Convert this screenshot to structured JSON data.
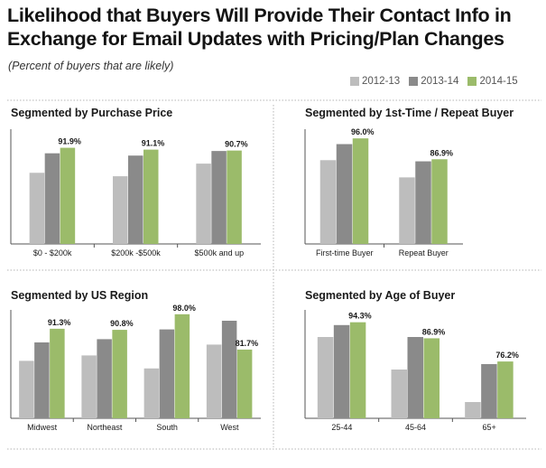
{
  "title": "Likelihood that Buyers Will Provide Their Contact Info in Exchange for Email Updates with Pricing/Plan Changes",
  "subtitle": "(Percent of buyers that are likely)",
  "legend": [
    {
      "label": "2012-13",
      "color": "#bdbdbd"
    },
    {
      "label": "2013-14",
      "color": "#8a8a8a"
    },
    {
      "label": "2014-15",
      "color": "#9bbb6a"
    }
  ],
  "chart_data": [
    {
      "type": "bar",
      "title": "Segmented by Purchase Price",
      "categories": [
        "$0 - $200k",
        "$200k -$500k",
        "$500k and up"
      ],
      "series": [
        {
          "name": "2012-13",
          "values": [
            81.0,
            79.5,
            85.0
          ]
        },
        {
          "name": "2013-14",
          "values": [
            89.5,
            88.5,
            90.5
          ]
        },
        {
          "name": "2014-15",
          "values": [
            91.9,
            91.1,
            90.7
          ]
        }
      ],
      "value_labels": [
        "91.9%",
        "91.1%",
        "90.7%"
      ],
      "ylim": [
        0,
        100
      ]
    },
    {
      "type": "bar",
      "title": "Segmented by 1st-Time / Repeat Buyer",
      "categories": [
        "First-time Buyer",
        "Repeat Buyer"
      ],
      "series": [
        {
          "name": "2012-13",
          "values": [
            86.5,
            79.0
          ]
        },
        {
          "name": "2013-14",
          "values": [
            93.5,
            86.0
          ]
        },
        {
          "name": "2014-15",
          "values": [
            96.0,
            86.9
          ]
        }
      ],
      "value_labels": [
        "96.0%",
        "86.9%"
      ],
      "ylim": [
        0,
        100
      ]
    },
    {
      "type": "bar",
      "title": "Segmented by US Region",
      "categories": [
        "Midwest",
        "Northeast",
        "South",
        "West"
      ],
      "series": [
        {
          "name": "2012-13",
          "values": [
            76.5,
            79.0,
            73.0,
            84.0
          ]
        },
        {
          "name": "2013-14",
          "values": [
            85.0,
            86.5,
            91.0,
            95.0
          ]
        },
        {
          "name": "2014-15",
          "values": [
            91.3,
            90.8,
            98.0,
            81.7
          ]
        }
      ],
      "value_labels": [
        "91.3%",
        "90.8%",
        "98.0%",
        "81.7%"
      ],
      "ylim": [
        0,
        100
      ]
    },
    {
      "type": "bar",
      "title": "Segmented by Age of Buyer",
      "categories": [
        "25-44",
        "45-64",
        "65+"
      ],
      "series": [
        {
          "name": "2012-13",
          "values": [
            87.5,
            72.5,
            57.5
          ]
        },
        {
          "name": "2013-14",
          "values": [
            93.0,
            87.5,
            75.0
          ]
        },
        {
          "name": "2014-15",
          "values": [
            94.3,
            86.9,
            76.2
          ]
        }
      ],
      "value_labels": [
        "94.3%",
        "86.9%",
        "76.2%"
      ],
      "ylim": [
        0,
        100
      ]
    }
  ]
}
